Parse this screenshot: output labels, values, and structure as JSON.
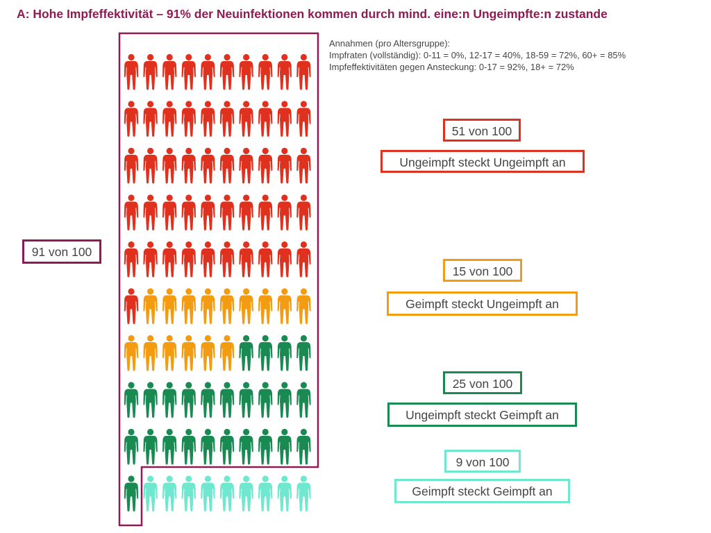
{
  "title": "A: Hohe Impfeffektivität – 91% der Neuinfektionen kommen durch mind. eine:n Ungeimpfte:n zustande",
  "assumptions": [
    "Annahmen (pro Altersgruppe):",
    "Impfraten (vollständig): 0-11 = 0%, 12-17 = 40%, 18-59 = 72%, 60+ = 85%",
    "Impfeffektivitäten gegen Ansteckung: 0-17 = 92%, 18+ = 72%"
  ],
  "total_box": {
    "label": "91 von 100",
    "color": "#8e1b53"
  },
  "groups": [
    {
      "count_label": "51 von 100",
      "desc_label": "Ungeimpft steckt Ungeimpft an",
      "color": "#e0311e"
    },
    {
      "count_label": "15 von 100",
      "desc_label": "Geimpft steckt Ungeimpft an",
      "color": "#f39c12"
    },
    {
      "count_label": "25 von 100",
      "desc_label": "Ungeimpft steckt Geimpft an",
      "color": "#1a8a53"
    },
    {
      "count_label": "9 von 100",
      "desc_label": "Geimpft steckt Geimpft an",
      "color": "#6fe8cf"
    }
  ],
  "chart_data": {
    "type": "pictogram",
    "total": 100,
    "categories": [
      "Ungeimpft steckt Ungeimpft an",
      "Geimpft steckt Ungeimpft an",
      "Ungeimpft steckt Geimpft an",
      "Geimpft steckt Geimpft an"
    ],
    "values": [
      51,
      15,
      25,
      9
    ],
    "colors": [
      "#e0311e",
      "#f39c12",
      "#1a8a53",
      "#6fe8cf"
    ],
    "highlight_total": 91
  }
}
